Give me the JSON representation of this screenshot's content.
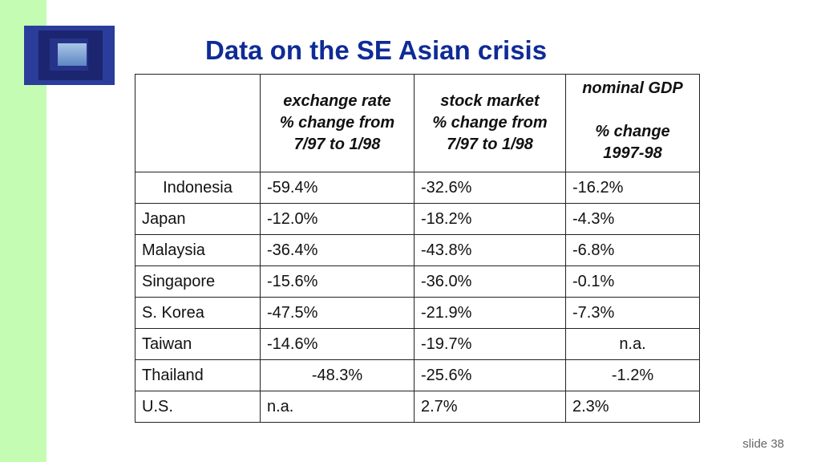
{
  "title": "Data on the SE Asian crisis",
  "slide_number": "slide 38",
  "table": {
    "headers": [
      "",
      "exchange rate % change from 7/97 to 1/98",
      "stock market % change from 7/97 to 1/98",
      "nominal GDP\n\n% change 1997-98"
    ],
    "header_lines": {
      "exchange": [
        "exchange rate",
        "% change from",
        "7/97 to 1/98"
      ],
      "stock": [
        "stock market",
        "% change from",
        "7/97 to 1/98"
      ],
      "gdp": [
        "nominal GDP",
        "% change",
        "1997-98"
      ]
    },
    "rows": [
      [
        "Indonesia",
        "-59.4%",
        "-32.6%",
        "-16.2%"
      ],
      [
        "Japan",
        "-12.0%",
        "-18.2%",
        "-4.3%"
      ],
      [
        "Malaysia",
        "-36.4%",
        "-43.8%",
        "-6.8%"
      ],
      [
        "Singapore",
        "-15.6%",
        "-36.0%",
        "-0.1%"
      ],
      [
        "S. Korea",
        "-47.5%",
        "-21.9%",
        "-7.3%"
      ],
      [
        "Taiwan",
        "-14.6%",
        "-19.7%",
        "n.a."
      ],
      [
        "Thailand",
        "-48.3%",
        "-25.6%",
        "-1.2%"
      ],
      [
        "U.S.",
        "n.a.",
        "2.7%",
        "2.3%"
      ]
    ]
  },
  "colors": {
    "title": "#0f2b96",
    "sidebar": "#c4fcb4"
  }
}
